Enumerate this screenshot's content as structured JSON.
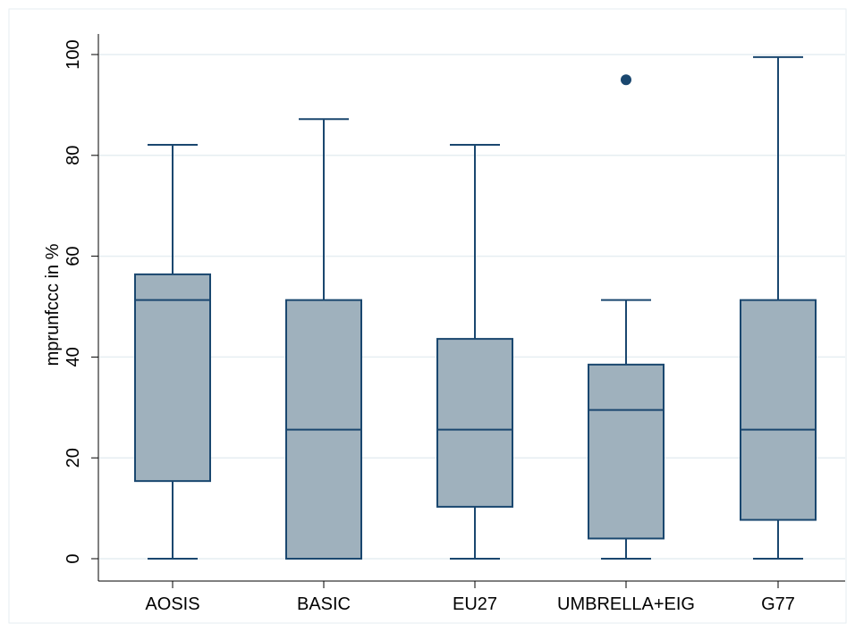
{
  "chart_data": {
    "type": "box",
    "ylabel": "mprunfccc in %",
    "xlabel": "",
    "title": "",
    "ylim": [
      0,
      100
    ],
    "yticks": [
      0,
      20,
      40,
      60,
      80,
      100
    ],
    "grid": true,
    "categories": [
      "AOSIS",
      "BASIC",
      "EU27",
      "UMBRELLA+EIG",
      "G77"
    ],
    "boxes": [
      {
        "category": "AOSIS",
        "min": 0,
        "q1": 15.4,
        "median": 51.3,
        "q3": 56.4,
        "max": 82.1,
        "outliers": []
      },
      {
        "category": "BASIC",
        "min": 0,
        "q1": 0,
        "median": 25.6,
        "q3": 51.3,
        "max": 87.2,
        "outliers": []
      },
      {
        "category": "EU27",
        "min": 0,
        "q1": 10.3,
        "median": 25.6,
        "q3": 43.6,
        "max": 82.1,
        "outliers": []
      },
      {
        "category": "UMBRELLA+EIG",
        "min": 0,
        "q1": 4.0,
        "median": 29.5,
        "q3": 38.5,
        "max": 51.3,
        "outliers": [
          95.0
        ]
      },
      {
        "category": "G77",
        "min": 0,
        "q1": 7.7,
        "median": 25.6,
        "q3": 51.3,
        "max": 99.5,
        "outliers": []
      }
    ],
    "colors": {
      "box_fill": "#9fb1bd",
      "box_stroke": "#1a476f",
      "grid": "#e6eef2",
      "frame": "#e6eef2",
      "outlier": "#1a476f"
    }
  }
}
